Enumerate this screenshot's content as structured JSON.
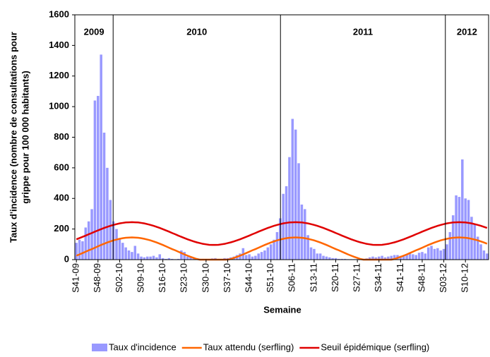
{
  "chart_data": {
    "type": "bar_line",
    "xlabel": "Semaine",
    "ylabel": [
      "Taux d'incidence (nombre de consultations pour",
      "grippe pour 100 000 habitants)"
    ],
    "periods": [
      "2009",
      "2010",
      "2011",
      "2012"
    ],
    "ylim": [
      0,
      1600
    ],
    "yticks": [
      0,
      200,
      400,
      600,
      800,
      1000,
      1200,
      1400,
      1600
    ],
    "categories": [
      "S41-09",
      null,
      null,
      null,
      null,
      null,
      null,
      "S48-09",
      null,
      null,
      null,
      null,
      null,
      null,
      "S02-10",
      null,
      null,
      null,
      null,
      null,
      null,
      "S09-10",
      null,
      null,
      null,
      null,
      null,
      null,
      "S16-10",
      null,
      null,
      null,
      null,
      null,
      null,
      "S23-10",
      null,
      null,
      null,
      null,
      null,
      null,
      "S30-10",
      null,
      null,
      null,
      null,
      null,
      null,
      "S37-10",
      null,
      null,
      null,
      null,
      null,
      null,
      "S44-10",
      null,
      null,
      null,
      null,
      null,
      null,
      "S51-10",
      null,
      null,
      null,
      null,
      null,
      null,
      "S06-11",
      null,
      null,
      null,
      null,
      null,
      null,
      "S13-11",
      null,
      null,
      null,
      null,
      null,
      null,
      "S20-11",
      null,
      null,
      null,
      null,
      null,
      null,
      "S27-11",
      null,
      null,
      null,
      null,
      null,
      null,
      "S34-11",
      null,
      null,
      null,
      null,
      null,
      null,
      "S41-11",
      null,
      null,
      null,
      null,
      null,
      null,
      "S48-11",
      null,
      null,
      null,
      null,
      null,
      null,
      "S03-12",
      null,
      null,
      null,
      null,
      null,
      null,
      "S10-12",
      null,
      null,
      null,
      null,
      null,
      null,
      null
    ],
    "series": [
      {
        "name": "Taux d'incidence",
        "kind": "bar",
        "color": "#9999ff",
        "values": [
          110,
          130,
          120,
          210,
          250,
          330,
          1040,
          1070,
          1340,
          830,
          600,
          390,
          250,
          200,
          140,
          110,
          80,
          60,
          50,
          90,
          40,
          20,
          15,
          20,
          20,
          25,
          15,
          35,
          10,
          5,
          10,
          5,
          3,
          5,
          60,
          50,
          20,
          15,
          10,
          10,
          5,
          5,
          5,
          5,
          8,
          10,
          5,
          5,
          10,
          10,
          15,
          20,
          30,
          40,
          75,
          30,
          35,
          20,
          25,
          40,
          50,
          60,
          80,
          100,
          130,
          180,
          270,
          430,
          480,
          670,
          920,
          850,
          630,
          360,
          330,
          160,
          80,
          70,
          40,
          40,
          25,
          20,
          15,
          10,
          10,
          5,
          5,
          5,
          3,
          3,
          3,
          3,
          5,
          5,
          8,
          15,
          20,
          15,
          20,
          25,
          15,
          20,
          25,
          30,
          30,
          25,
          25,
          35,
          40,
          35,
          30,
          45,
          50,
          40,
          80,
          90,
          70,
          75,
          60,
          70,
          100,
          180,
          290,
          420,
          410,
          655,
          400,
          390,
          280,
          230,
          150,
          100,
          60,
          40
        ]
      },
      {
        "name": "Taux attendu (serfling)",
        "kind": "line",
        "color": "#ff6600",
        "values": [
          26,
          34,
          43,
          52,
          61,
          69,
          78,
          87,
          96,
          104,
          112,
          119,
          126,
          131,
          136,
          140,
          143,
          144,
          145,
          144,
          143,
          140,
          136,
          131,
          126,
          119,
          112,
          104,
          96,
          87,
          78,
          69,
          61,
          52,
          43,
          34,
          26,
          18,
          11,
          4,
          0,
          0,
          0,
          0,
          0,
          0,
          0,
          0,
          0,
          0,
          4,
          11,
          18,
          26,
          34,
          43,
          52,
          61,
          69,
          78,
          87,
          96,
          104,
          112,
          119,
          126,
          131,
          136,
          140,
          143,
          144,
          145,
          144,
          143,
          140,
          136,
          131,
          126,
          119,
          112,
          104,
          96,
          87,
          78,
          69,
          61,
          52,
          43,
          34,
          26,
          18,
          11,
          4,
          0,
          0,
          0,
          0,
          0,
          0,
          0,
          0,
          0,
          0,
          4,
          11,
          18,
          26,
          34,
          43,
          52,
          61,
          69,
          78,
          87,
          96,
          104,
          112,
          119,
          126,
          131,
          136,
          140,
          143,
          144,
          145,
          144,
          143,
          140,
          136,
          131,
          126,
          119,
          112,
          104
        ]
      },
      {
        "name": "Seuil épidémique (serfling)",
        "kind": "line",
        "color": "#e00000",
        "values": [
          133,
          141,
          149,
          157,
          166,
          174,
          183,
          191,
          199,
          207,
          214,
          221,
          227,
          232,
          237,
          240,
          243,
          244,
          245,
          244,
          243,
          240,
          237,
          232,
          227,
          221,
          214,
          207,
          199,
          191,
          183,
          174,
          166,
          157,
          149,
          141,
          133,
          126,
          119,
          113,
          108,
          103,
          100,
          97,
          96,
          96,
          97,
          100,
          103,
          108,
          113,
          119,
          126,
          133,
          141,
          149,
          157,
          166,
          174,
          183,
          191,
          199,
          207,
          214,
          221,
          227,
          232,
          237,
          240,
          243,
          244,
          245,
          244,
          243,
          240,
          237,
          232,
          227,
          221,
          214,
          207,
          199,
          191,
          183,
          174,
          166,
          157,
          149,
          141,
          133,
          126,
          119,
          113,
          108,
          103,
          100,
          97,
          96,
          96,
          97,
          100,
          103,
          108,
          113,
          119,
          126,
          133,
          141,
          149,
          157,
          166,
          174,
          183,
          191,
          199,
          207,
          214,
          221,
          227,
          232,
          237,
          240,
          243,
          244,
          245,
          244,
          243,
          240,
          237,
          232,
          227,
          221,
          214,
          207
        ]
      }
    ]
  }
}
